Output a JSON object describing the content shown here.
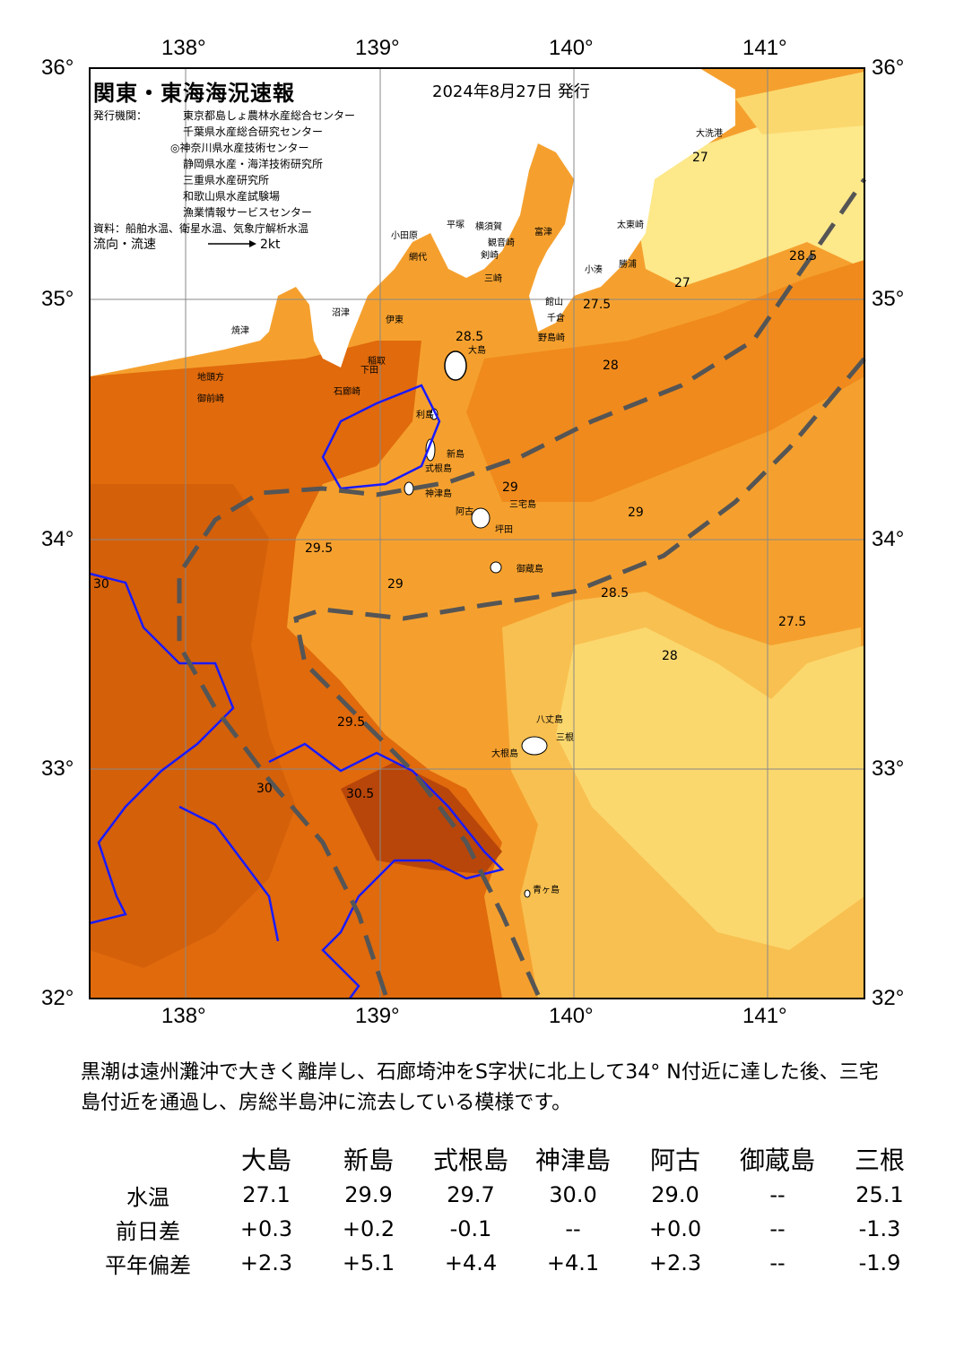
{
  "header": {
    "title": "関東・東海海況速報",
    "date": "2024年8月27日 発行",
    "issuers_label": "発行機関：",
    "issuers": [
      "東京都島しょ農林水産総合センター",
      "千葉県水産総合研究センター",
      "◎神奈川県水産技術センター",
      "静岡県水産・海洋技術研究所",
      "三重県水産研究所",
      "和歌山県水産試験場",
      "漁業情報サービスセンター"
    ],
    "source": "資料：船舶水温、衛星水温、気象庁解析水温",
    "flow_label": "流向・流速",
    "flow_scale": "2kt"
  },
  "axes": {
    "lon_ticks": [
      "138°",
      "139°",
      "140°",
      "141°"
    ],
    "lat_ticks": [
      "36°",
      "35°",
      "34°",
      "33°",
      "32°"
    ]
  },
  "place_labels": [
    "大洗港",
    "太東崎",
    "勝浦",
    "小湊",
    "館山",
    "千倉",
    "野島崎",
    "富津",
    "横須賀",
    "観音崎",
    "剣崎",
    "三崎",
    "平塚",
    "小田原",
    "網代",
    "伊東",
    "稲取",
    "下田",
    "石廊崎",
    "御前崎",
    "地頭方",
    "焼津",
    "沼津",
    "大島",
    "利島",
    "新島",
    "式根島",
    "神津島",
    "三宅島",
    "坪田",
    "阿古",
    "御蔵島",
    "八丈島",
    "三根",
    "大根島",
    "青ヶ島"
  ],
  "contour_labels": [
    "27",
    "27",
    "27.5",
    "28",
    "28.5",
    "28.5",
    "29",
    "29",
    "29.5",
    "30",
    "30.5",
    "27.5",
    "28",
    "28.5",
    "29",
    "29.5",
    "30"
  ],
  "summary": "黒潮は遠州灘沖で大きく離岸し、石廊埼沖をS字状に北上して34° N付近に達した後、三宅島付近を通過し、房総半島沖に流去している模様です。",
  "table": {
    "columns": [
      "大島",
      "新島",
      "式根島",
      "神津島",
      "阿古",
      "御蔵島",
      "三根"
    ],
    "rows": [
      {
        "label": "水温",
        "values": [
          "27.1",
          "29.9",
          "29.7",
          "30.0",
          "29.0",
          "--",
          "25.1"
        ]
      },
      {
        "label": "前日差",
        "values": [
          "+0.3",
          "+0.2",
          "-0.1",
          "--",
          "+0.0",
          "--",
          "-1.3"
        ]
      },
      {
        "label": "平年偏差",
        "values": [
          "+2.3",
          "+5.1",
          "+4.4",
          "+4.1",
          "+2.3",
          "--",
          "-1.9"
        ]
      }
    ]
  },
  "colors": {
    "warm_30": "#c8500a",
    "warm_29_5": "#e06a0c",
    "warm_29": "#f08a1c",
    "warm_28_5": "#f5a02e",
    "warm_28": "#f8c050",
    "warm_27_5": "#fbd86e",
    "warm_27": "#fde88a",
    "contour_30": "#1a1aff",
    "kuroshio_path": "#555555",
    "land": "#ffffff"
  }
}
